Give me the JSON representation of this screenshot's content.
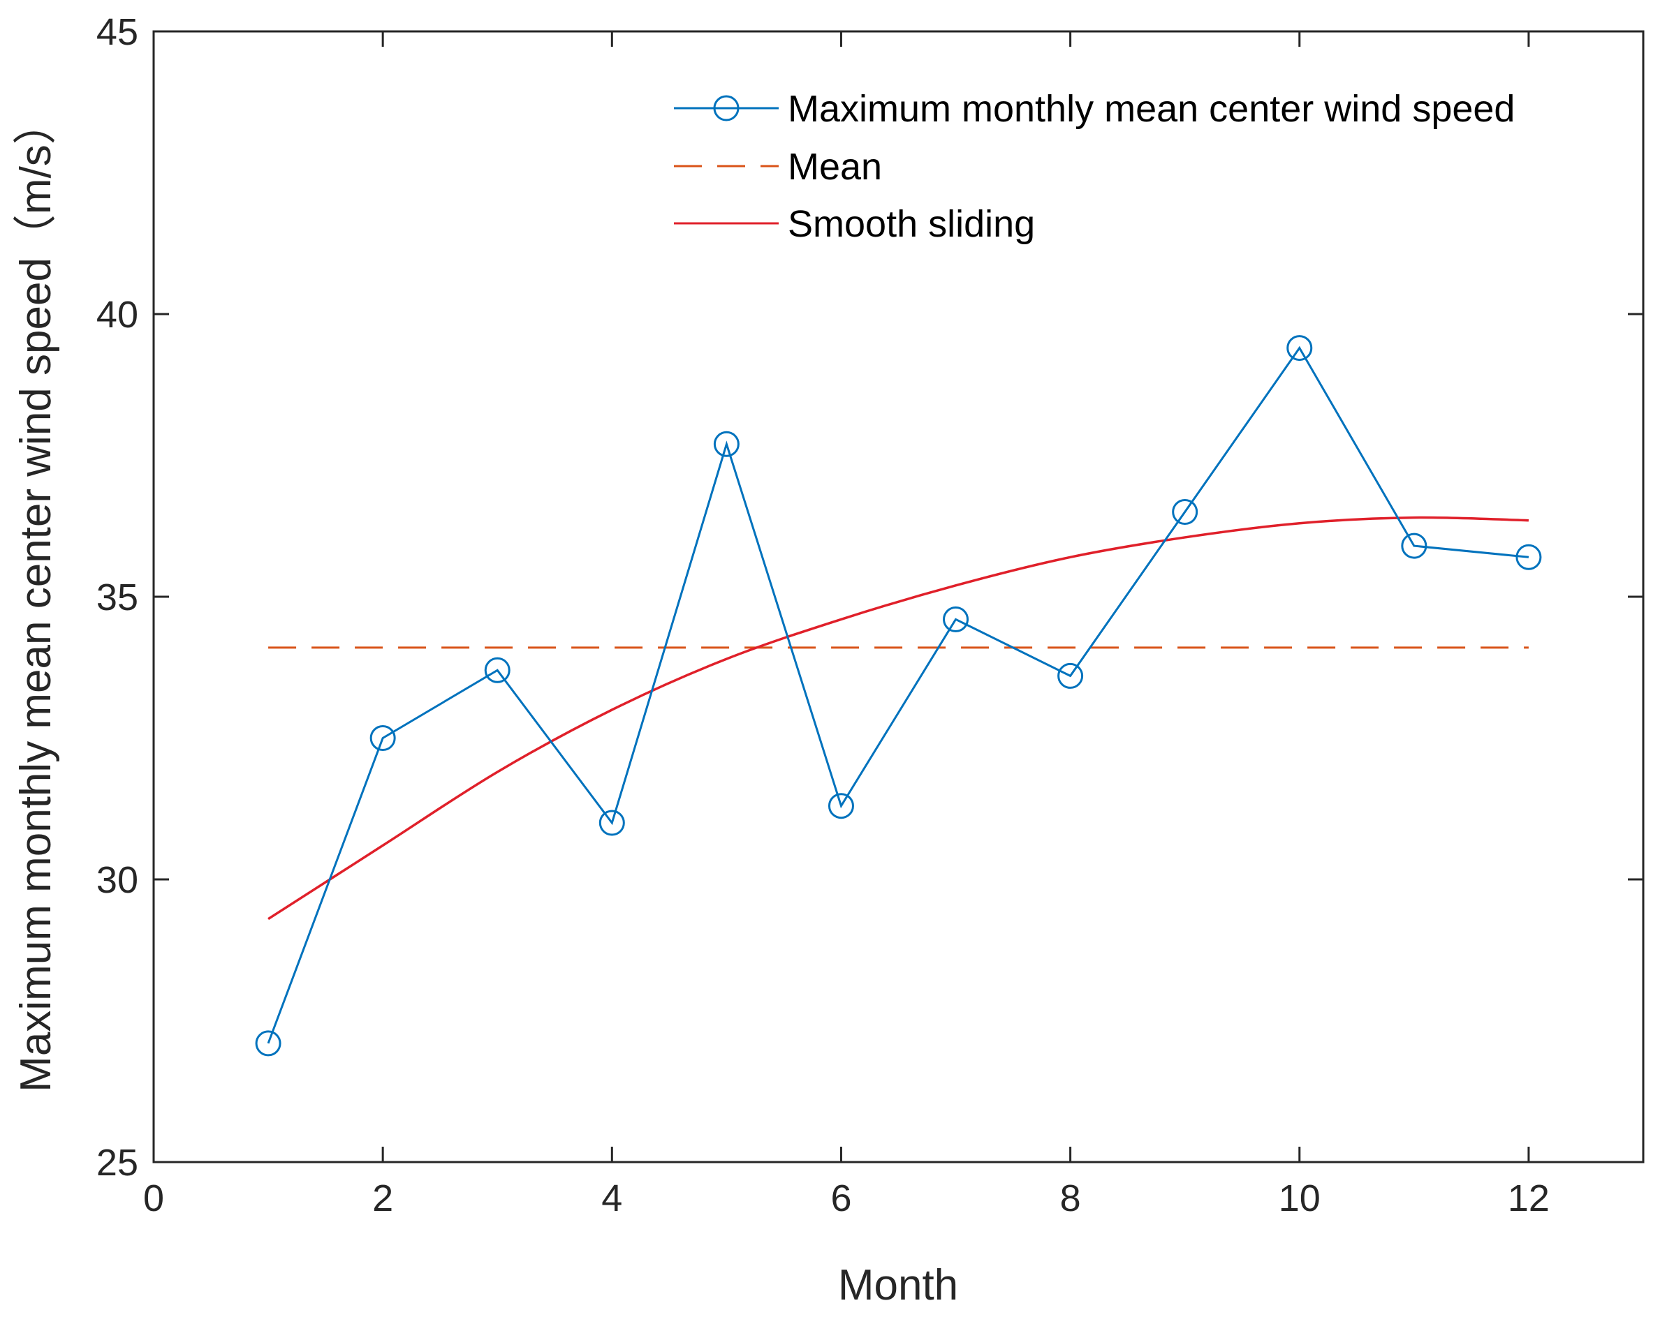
{
  "chart_data": {
    "type": "line",
    "title": "",
    "xlabel": "Month",
    "ylabel": "Maximum monthly mean center wind speed（m/s）",
    "xlim": [
      0,
      13
    ],
    "ylim": [
      25,
      45
    ],
    "xticks": [
      0,
      2,
      4,
      6,
      8,
      10,
      12
    ],
    "yticks": [
      25,
      30,
      35,
      40,
      45
    ],
    "grid": false,
    "legend_position": "top-right",
    "series": [
      {
        "name": "Maximum monthly mean center wind speed",
        "style": "solid-line-circle-markers",
        "color": "#0072BD",
        "x": [
          1,
          2,
          3,
          4,
          5,
          6,
          7,
          8,
          9,
          10,
          11,
          12
        ],
        "y": [
          27.1,
          32.5,
          33.7,
          31.0,
          37.7,
          31.3,
          34.6,
          33.6,
          36.5,
          39.4,
          35.9,
          35.7
        ]
      },
      {
        "name": "Mean",
        "style": "dashed",
        "color": "#D95319",
        "x": [
          1,
          12
        ],
        "y": [
          34.1,
          34.1
        ]
      },
      {
        "name": "Smooth sliding",
        "style": "solid",
        "color": "#E0202A",
        "x": [
          1,
          2,
          3,
          4,
          5,
          6,
          7,
          8,
          9,
          10,
          11,
          12
        ],
        "y": [
          29.3,
          30.6,
          31.9,
          33.0,
          33.9,
          34.6,
          35.2,
          35.7,
          36.05,
          36.3,
          36.4,
          36.35
        ]
      }
    ]
  }
}
